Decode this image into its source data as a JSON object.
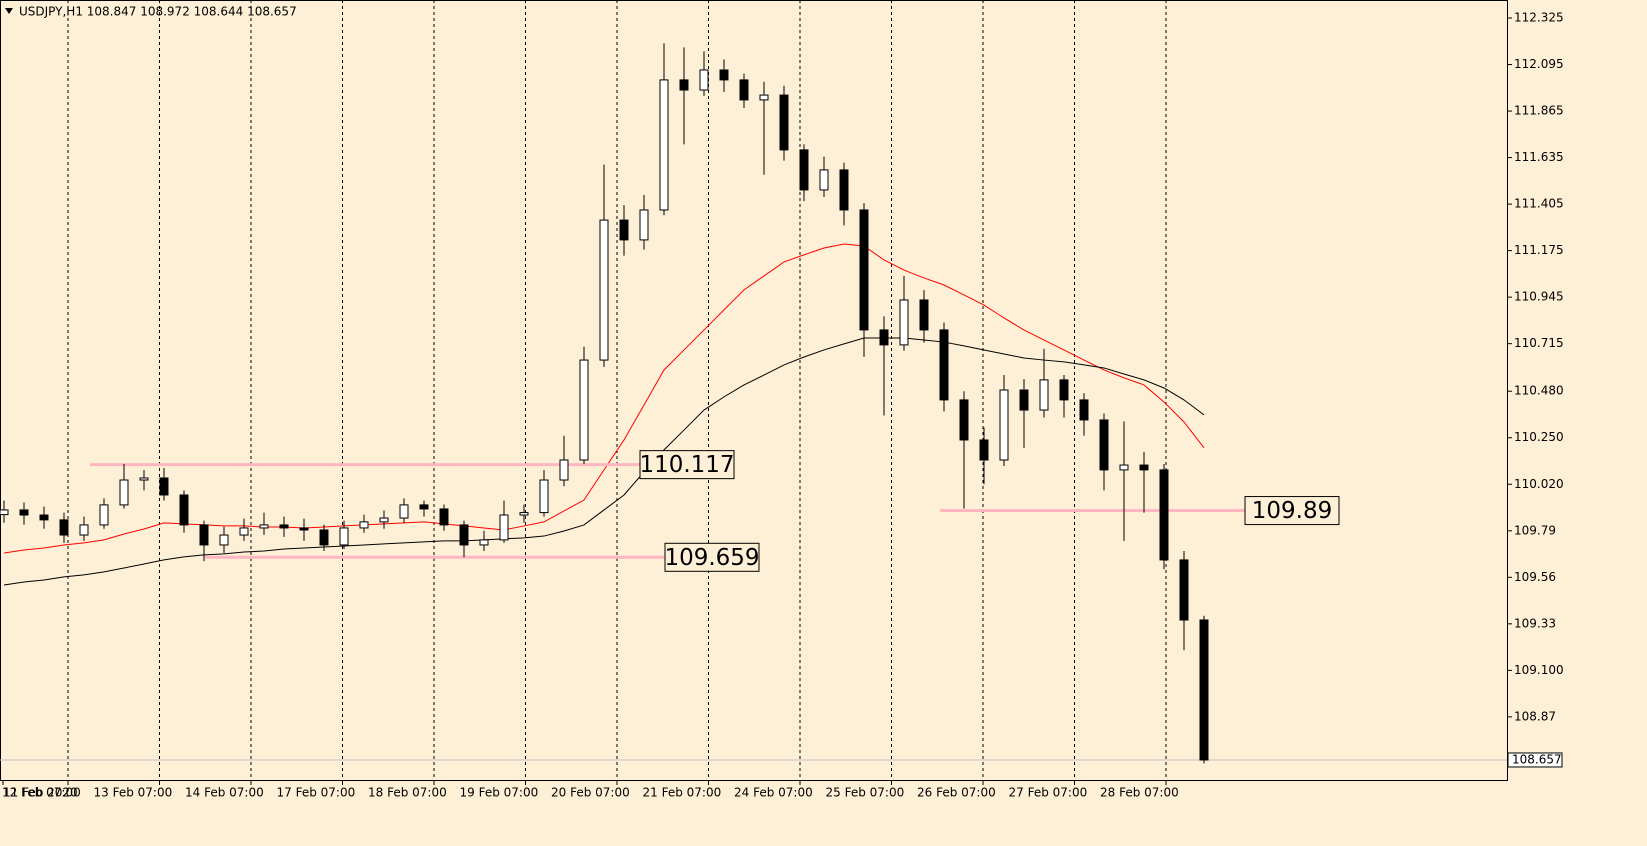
{
  "chart_data": {
    "type": "candlestick",
    "title": "USDJPY,H1  108.847 108.972 108.644 108.657",
    "xtick_labels": [
      "11 Feb 2020",
      "12 Feb 07:00",
      "13 Feb 07:00",
      "14 Feb 07:00",
      "17 Feb 07:00",
      "18 Feb 07:00",
      "19 Feb 07:00",
      "20 Feb 07:00",
      "21 Feb 07:00",
      "24 Feb 07:00",
      "25 Feb 07:00",
      "26 Feb 07:00",
      "27 Feb 07:00",
      "28 Feb 07:00"
    ],
    "open": [
      109.87,
      109.893,
      109.868,
      109.844,
      109.769,
      109.819,
      109.918,
      110.041,
      110.051,
      109.967,
      109.819,
      109.72,
      109.769,
      109.804,
      109.819,
      109.804,
      109.794,
      109.72,
      109.804,
      109.834,
      109.853,
      109.918,
      109.898,
      109.819,
      109.72,
      109.745,
      109.868,
      109.88,
      110.041,
      110.14,
      110.634,
      111.326,
      111.228,
      111.376,
      112.019,
      111.969,
      112.068,
      112.019,
      111.92,
      111.944,
      111.673,
      111.475,
      111.574,
      111.376,
      110.783,
      110.709,
      110.931,
      110.783,
      110.437,
      110.239,
      110.14,
      110.486,
      110.387,
      110.536,
      110.437,
      110.338,
      110.091,
      110.115,
      110.091,
      109.646,
      109.349
    ],
    "high": [
      109.94,
      109.93,
      109.91,
      109.88,
      109.86,
      109.95,
      110.12,
      110.09,
      110.1,
      109.99,
      109.84,
      109.81,
      109.85,
      109.88,
      109.86,
      109.85,
      109.82,
      109.84,
      109.87,
      109.89,
      109.95,
      109.94,
      109.92,
      109.84,
      109.79,
      109.94,
      109.92,
      110.09,
      110.26,
      110.7,
      111.6,
      111.4,
      111.45,
      112.2,
      112.18,
      112.16,
      112.12,
      112.05,
      112.01,
      111.99,
      111.7,
      111.64,
      111.61,
      111.41,
      110.85,
      111.05,
      110.98,
      110.82,
      110.48,
      110.3,
      110.56,
      110.54,
      110.69,
      110.56,
      110.47,
      110.37,
      110.33,
      110.18,
      110.12,
      109.69,
      109.37
    ],
    "low": [
      109.83,
      109.82,
      109.8,
      109.73,
      109.74,
      109.8,
      109.9,
      109.99,
      109.94,
      109.78,
      109.64,
      109.68,
      109.74,
      109.77,
      109.76,
      109.74,
      109.69,
      109.7,
      109.78,
      109.8,
      109.83,
      109.86,
      109.79,
      109.66,
      109.69,
      109.73,
      109.83,
      109.86,
      110.01,
      110.12,
      110.6,
      111.15,
      111.18,
      111.35,
      111.7,
      111.94,
      111.96,
      111.88,
      111.55,
      111.62,
      111.42,
      111.44,
      111.3,
      110.65,
      110.36,
      110.68,
      110.72,
      110.38,
      109.9,
      110.02,
      110.11,
      110.2,
      110.35,
      110.35,
      110.26,
      109.99,
      109.74,
      109.88,
      109.6,
      109.2,
      108.64
    ],
    "close": [
      109.893,
      109.868,
      109.844,
      109.769,
      109.819,
      109.918,
      110.041,
      110.051,
      109.967,
      109.819,
      109.72,
      109.769,
      109.804,
      109.819,
      109.804,
      109.794,
      109.72,
      109.804,
      109.834,
      109.853,
      109.918,
      109.898,
      109.819,
      109.72,
      109.745,
      109.868,
      109.88,
      110.041,
      110.14,
      110.634,
      111.326,
      111.228,
      111.376,
      112.019,
      111.969,
      112.068,
      112.019,
      111.92,
      111.944,
      111.673,
      111.475,
      111.574,
      111.376,
      110.783,
      110.709,
      110.931,
      110.783,
      110.437,
      110.239,
      110.14,
      110.486,
      110.387,
      110.536,
      110.437,
      110.338,
      110.091,
      110.115,
      110.091,
      109.646,
      109.349,
      108.657
    ],
    "ma_lines": [
      {
        "color": "#ff0000",
        "values": [
          109.68,
          109.695,
          109.705,
          109.72,
          109.73,
          109.745,
          109.774,
          109.799,
          109.829,
          109.824,
          109.819,
          109.814,
          109.814,
          109.809,
          109.809,
          109.804,
          109.809,
          109.814,
          109.819,
          109.824,
          109.829,
          109.834,
          109.824,
          109.814,
          109.804,
          109.794,
          109.814,
          109.834,
          109.888,
          109.942,
          110.091,
          110.239,
          110.412,
          110.585,
          110.684,
          110.783,
          110.882,
          110.981,
          111.05,
          111.119,
          111.154,
          111.188,
          111.208,
          111.198,
          111.129,
          111.079,
          111.04,
          111.005,
          110.956,
          110.906,
          110.842,
          110.783,
          110.733,
          110.684,
          110.634,
          110.585,
          110.546,
          110.511,
          110.427,
          110.328,
          110.2
        ]
      },
      {
        "color": "#000000",
        "values": [
          109.522,
          109.537,
          109.547,
          109.562,
          109.572,
          109.587,
          109.606,
          109.626,
          109.646,
          109.661,
          109.671,
          109.676,
          109.685,
          109.69,
          109.7,
          109.705,
          109.71,
          109.715,
          109.72,
          109.725,
          109.73,
          109.735,
          109.74,
          109.74,
          109.745,
          109.75,
          109.755,
          109.764,
          109.789,
          109.819,
          109.893,
          109.967,
          110.081,
          110.19,
          110.288,
          110.387,
          110.452,
          110.511,
          110.56,
          110.61,
          110.649,
          110.684,
          110.714,
          110.743,
          110.743,
          110.743,
          110.733,
          110.723,
          110.704,
          110.684,
          110.664,
          110.644,
          110.634,
          110.625,
          110.61,
          110.595,
          110.565,
          110.536,
          110.496,
          110.437,
          110.363
        ]
      }
    ],
    "levels": [
      110.117,
      109.659,
      109.89
    ],
    "level_color": "#ffb6c1",
    "last_price": 108.657,
    "ylim": [
      108.558,
      112.414
    ],
    "yticks": [
      112.325,
      112.095,
      111.865,
      111.635,
      111.405,
      111.175,
      110.945,
      110.715,
      {
        "value": 110.48,
        "label": "110.480"
      },
      {
        "value": 110.25,
        "label": "110.250"
      },
      {
        "value": 110.02,
        "label": "110.020"
      },
      109.79,
      109.56,
      109.33,
      {
        "value": 109.1,
        "label": "109.100"
      },
      108.87
    ],
    "grid": true
  }
}
